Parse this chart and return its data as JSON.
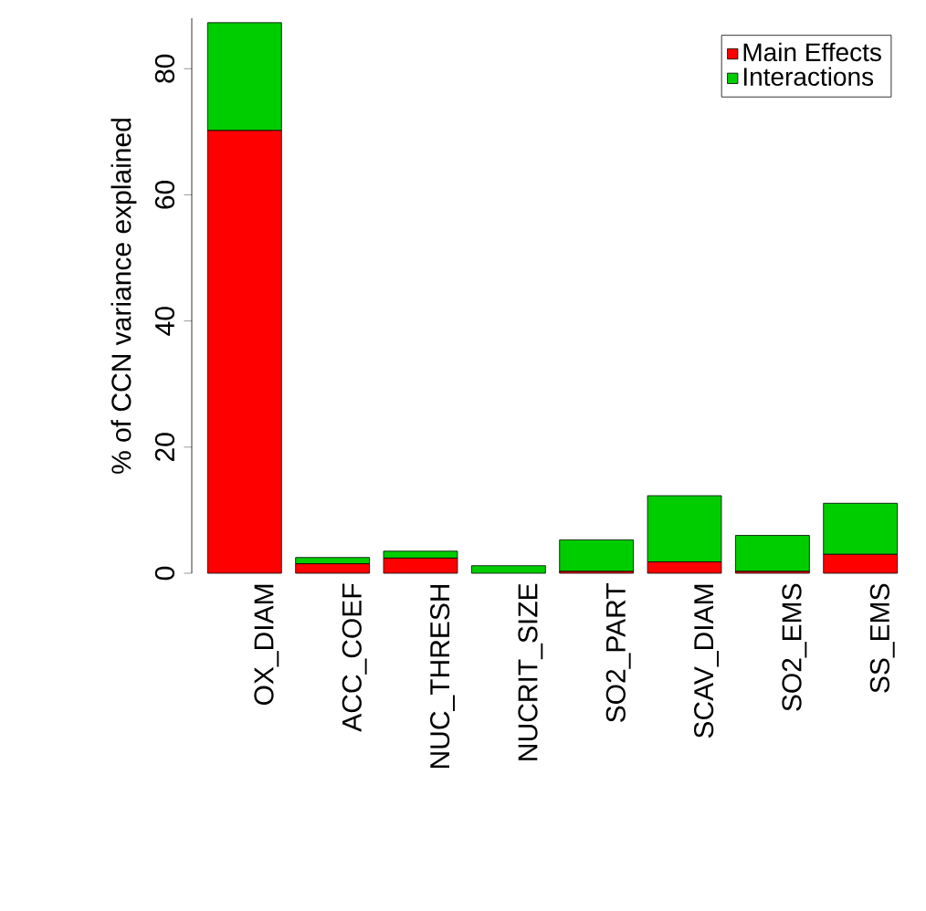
{
  "chart_data": {
    "type": "bar",
    "ylabel": "% of CCN variance explained",
    "categories": [
      "OX_DIAM",
      "ACC_COEF",
      "NUC_THRESH",
      "NUCRIT_SIZE",
      "SO2_PART",
      "SCAV_DIAM",
      "SO2_EMS",
      "SS_EMS"
    ],
    "series": [
      {
        "name": "Main Effects",
        "color": "#ff0000",
        "values": [
          70.2,
          1.5,
          2.4,
          null,
          0.3,
          1.8,
          0.3,
          3.0
        ]
      },
      {
        "name": "Interactions",
        "color": "#00cd00",
        "values": [
          17.1,
          1.0,
          1.1,
          1.2,
          5.0,
          10.5,
          5.7,
          8.1
        ]
      }
    ],
    "stacked": true,
    "ylim": [
      0,
      88
    ],
    "yticks": [
      0,
      20,
      40,
      60,
      80
    ],
    "legend": "top right"
  }
}
